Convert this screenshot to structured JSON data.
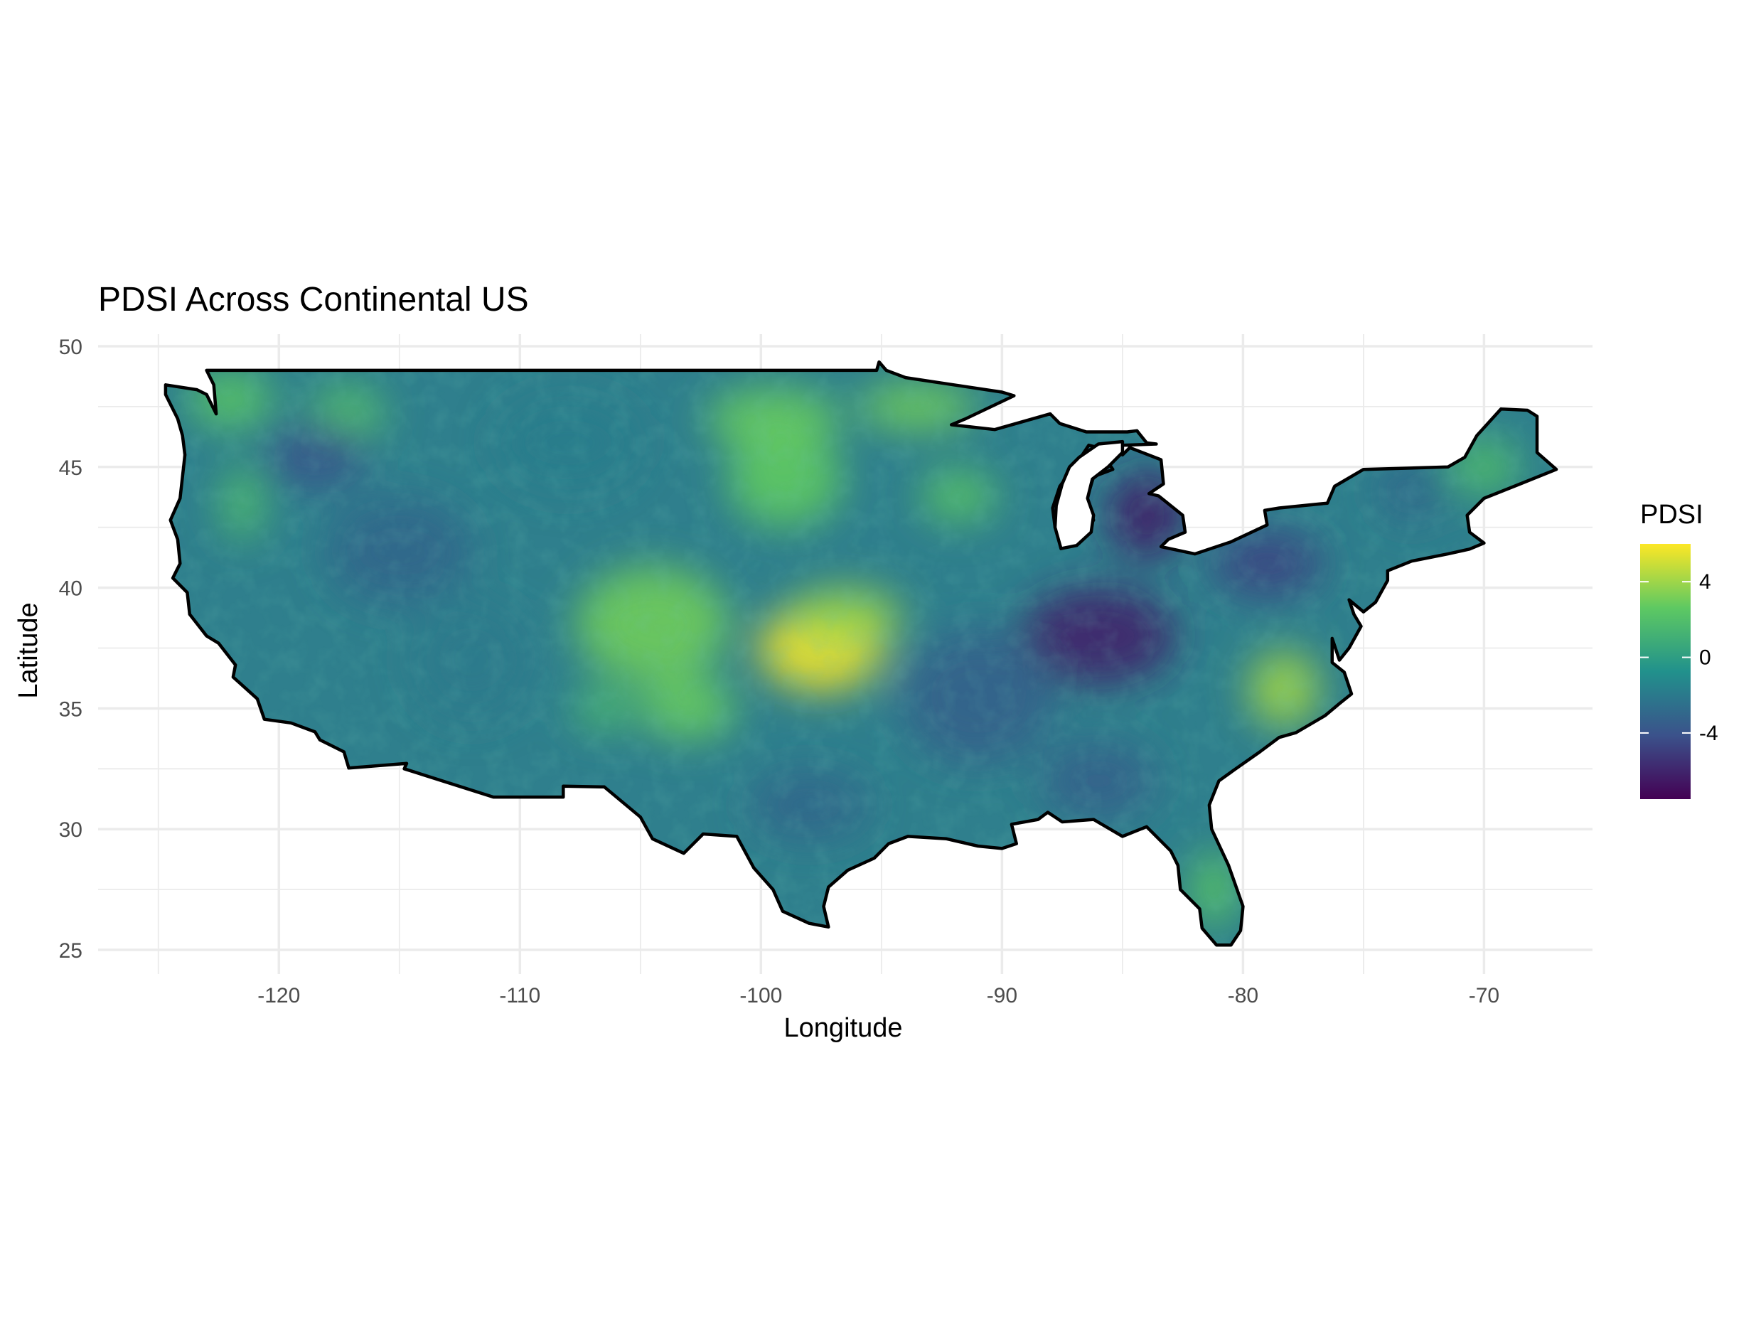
{
  "chart_data": {
    "type": "heatmap",
    "title": "PDSI Across Continental US",
    "xlabel": "Longitude",
    "ylabel": "Latitude",
    "xlim": [
      -127.5,
      -65.5
    ],
    "ylim": [
      24.0,
      50.5
    ],
    "x_ticks": [
      -120,
      -110,
      -100,
      -90,
      -80,
      -70
    ],
    "x_tick_labels": [
      "-120",
      "-110",
      "-100",
      "-90",
      "-80",
      "-70"
    ],
    "y_ticks": [
      25,
      30,
      35,
      40,
      45,
      50
    ],
    "y_tick_labels": [
      "25",
      "30",
      "35",
      "40",
      "45",
      "50"
    ],
    "grid": true,
    "legend": {
      "title": "PDSI",
      "position": "right",
      "colormap": "viridis",
      "range": [
        -7.5,
        6.0
      ],
      "ticks": [
        -4,
        0,
        4
      ],
      "tick_labels": [
        "-4",
        "0",
        "4"
      ]
    },
    "colors": {
      "background": "#ffffff",
      "grid": "#ebebeb",
      "outline": "#000000",
      "viridis_stops": [
        "#440154",
        "#3b528b",
        "#21918c",
        "#5ec962",
        "#fde725"
      ]
    }
  }
}
